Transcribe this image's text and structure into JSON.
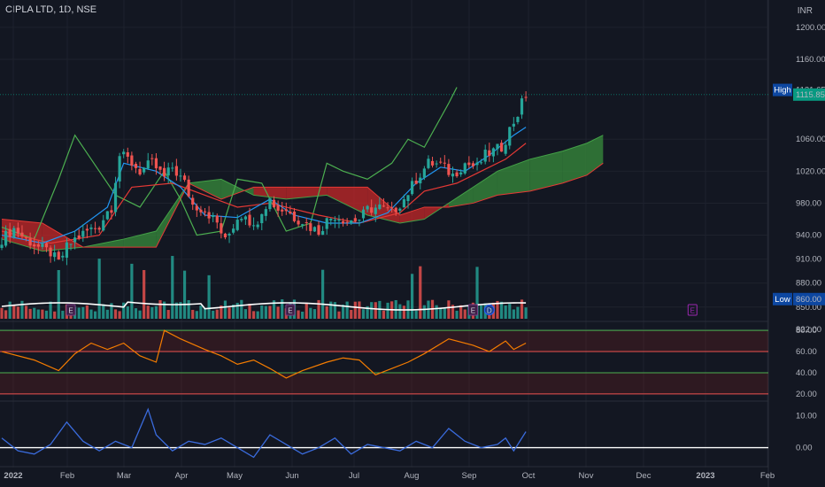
{
  "header": {
    "symbol": "CIPLA LTD, 1D, NSE",
    "currency": "INR"
  },
  "colors": {
    "background": "#131722",
    "up": "#26a69a",
    "down": "#ef5350",
    "tenkan": "#2196f3",
    "kijun": "#e53935",
    "lagging": "#4caf50",
    "cloud_bull": "#388e3c",
    "cloud_bear": "#c62828",
    "volume_ma": "#ffffff",
    "rsi": "#f57c00",
    "momentum": "#3a6bdc",
    "earnings": "#9c27b0",
    "high_tag": "#0d47a1",
    "last_tag": "#089981"
  },
  "chart_data": [
    {
      "type": "candlestick",
      "title": "CIPLA LTD, 1D, NSE",
      "ylim": [
        852,
        1212
      ],
      "price_ticks": [
        "1200.00",
        "1160.00",
        "1060.00",
        "1020.00",
        "980.00",
        "940.00",
        "910.00",
        "880.00",
        "850.00",
        "822.00"
      ],
      "price_tick_values": [
        1200,
        1160,
        1060,
        1020,
        980,
        940,
        910,
        880,
        850,
        822
      ],
      "x_ticks": [
        "2022",
        "Feb",
        "Mar",
        "Apr",
        "May",
        "Jun",
        "Jul",
        "Aug",
        "Sep",
        "Oct",
        "Nov",
        "Dec",
        "2023",
        "Feb"
      ],
      "close_path": [
        [
          0,
          935
        ],
        [
          3,
          948
        ],
        [
          6,
          935
        ],
        [
          9,
          925
        ],
        [
          12,
          918
        ],
        [
          14,
          905
        ],
        [
          16,
          925
        ],
        [
          18,
          935
        ],
        [
          21,
          945
        ],
        [
          24,
          952
        ],
        [
          26,
          970
        ],
        [
          27,
          975
        ],
        [
          28,
          1010
        ],
        [
          29,
          1040
        ],
        [
          31,
          1035
        ],
        [
          34,
          1020
        ],
        [
          37,
          1030
        ],
        [
          40,
          1012
        ],
        [
          42,
          1025
        ],
        [
          45,
          1005
        ],
        [
          47,
          978
        ],
        [
          50,
          972
        ],
        [
          53,
          955
        ],
        [
          55,
          932
        ],
        [
          58,
          962
        ],
        [
          60,
          968
        ],
        [
          62,
          948
        ],
        [
          64,
          972
        ],
        [
          66,
          985
        ],
        [
          68,
          972
        ],
        [
          70,
          972
        ],
        [
          72,
          962
        ],
        [
          74,
          958
        ],
        [
          76,
          950
        ],
        [
          78,
          945
        ],
        [
          80,
          958
        ],
        [
          82,
          965
        ],
        [
          85,
          958
        ],
        [
          88,
          960
        ],
        [
          90,
          972
        ],
        [
          93,
          975
        ],
        [
          96,
          968
        ],
        [
          99,
          985
        ],
        [
          102,
          1010
        ],
        [
          105,
          1030
        ],
        [
          108,
          1028
        ],
        [
          111,
          1015
        ],
        [
          114,
          1030
        ],
        [
          117,
          1025
        ],
        [
          119,
          1040
        ],
        [
          121,
          1045
        ],
        [
          123,
          1050
        ],
        [
          124,
          1060
        ],
        [
          125,
          1072
        ],
        [
          126,
          1082
        ],
        [
          127,
          1092
        ],
        [
          128,
          1105
        ],
        [
          129,
          1115.85
        ]
      ],
      "last_x": 129,
      "high": {
        "label": "High",
        "value": 1121.65,
        "value_text": "1121.65"
      },
      "last": {
        "value": 1115.85,
        "value_text": "1115.85"
      },
      "low": {
        "label": "Low",
        "value": 860,
        "value_text": "860.00"
      },
      "ichimoku": {
        "tenkan_path": [
          [
            0,
            940
          ],
          [
            10,
            930
          ],
          [
            18,
            945
          ],
          [
            26,
            975
          ],
          [
            30,
            1030
          ],
          [
            38,
            1020
          ],
          [
            44,
            1000
          ],
          [
            50,
            965
          ],
          [
            58,
            962
          ],
          [
            66,
            985
          ],
          [
            72,
            965
          ],
          [
            80,
            955
          ],
          [
            88,
            955
          ],
          [
            95,
            968
          ],
          [
            102,
            1005
          ],
          [
            108,
            1025
          ],
          [
            114,
            1020
          ],
          [
            120,
            1040
          ],
          [
            126,
            1065
          ],
          [
            129,
            1075
          ]
        ],
        "kijun_path": [
          [
            0,
            945
          ],
          [
            12,
            930
          ],
          [
            24,
            940
          ],
          [
            32,
            1000
          ],
          [
            42,
            1005
          ],
          [
            50,
            990
          ],
          [
            58,
            975
          ],
          [
            66,
            980
          ],
          [
            78,
            965
          ],
          [
            88,
            955
          ],
          [
            98,
            968
          ],
          [
            104,
            995
          ],
          [
            112,
            1005
          ],
          [
            118,
            1020
          ],
          [
            124,
            1035
          ],
          [
            129,
            1055
          ]
        ],
        "lagging_path": [
          [
            0,
            950
          ],
          [
            8,
            935
          ],
          [
            14,
            1010
          ],
          [
            18,
            1065
          ],
          [
            22,
            1035
          ],
          [
            28,
            990
          ],
          [
            34,
            975
          ],
          [
            40,
            1020
          ],
          [
            44,
            985
          ],
          [
            48,
            940
          ],
          [
            54,
            945
          ],
          [
            58,
            1010
          ],
          [
            64,
            1005
          ],
          [
            70,
            945
          ],
          [
            76,
            955
          ],
          [
            80,
            1030
          ],
          [
            84,
            1020
          ],
          [
            90,
            1010
          ],
          [
            96,
            1030
          ],
          [
            100,
            1060
          ],
          [
            104,
            1050
          ],
          [
            110,
            1105
          ],
          [
            112,
            1125
          ]
        ],
        "cloud_x": [
          0,
          10,
          20,
          30,
          38,
          46,
          54,
          62,
          70,
          80,
          90,
          98,
          104,
          110,
          116,
          122,
          130,
          138,
          144,
          148
        ],
        "span_a": [
          935,
          920,
          925,
          935,
          945,
          1005,
          1010,
          990,
          985,
          990,
          965,
          955,
          960,
          980,
          1000,
          1020,
          1035,
          1045,
          1055,
          1065
        ],
        "span_b": [
          960,
          955,
          925,
          925,
          925,
          1005,
          985,
          1000,
          1000,
          1000,
          1000,
          965,
          975,
          975,
          980,
          990,
          995,
          1005,
          1015,
          1030
        ]
      }
    },
    {
      "type": "bar",
      "name": "Volume",
      "bars": 130,
      "markers": [
        {
          "label": "E",
          "x": 17,
          "kind": "past"
        },
        {
          "label": "E",
          "x": 71,
          "kind": "past"
        },
        {
          "label": "E",
          "x": 116,
          "kind": "past"
        },
        {
          "label": "D",
          "x": 120,
          "kind": "dividend"
        },
        {
          "label": "E",
          "x": 170,
          "kind": "future"
        }
      ]
    },
    {
      "type": "line",
      "name": "RSI",
      "ylim": [
        14,
        86
      ],
      "ticks": [
        "80.00",
        "60.00",
        "40.00",
        "20.00"
      ],
      "tick_values": [
        80,
        60,
        40,
        20
      ],
      "bands": [
        80,
        60,
        40,
        20
      ],
      "path": [
        [
          0,
          60
        ],
        [
          8,
          52
        ],
        [
          14,
          42
        ],
        [
          18,
          58
        ],
        [
          22,
          68
        ],
        [
          26,
          62
        ],
        [
          30,
          68
        ],
        [
          34,
          56
        ],
        [
          38,
          50
        ],
        [
          40,
          80
        ],
        [
          44,
          72
        ],
        [
          50,
          62
        ],
        [
          54,
          56
        ],
        [
          58,
          48
        ],
        [
          62,
          52
        ],
        [
          66,
          44
        ],
        [
          70,
          35
        ],
        [
          74,
          42
        ],
        [
          80,
          50
        ],
        [
          84,
          54
        ],
        [
          88,
          52
        ],
        [
          92,
          38
        ],
        [
          96,
          44
        ],
        [
          100,
          50
        ],
        [
          104,
          58
        ],
        [
          110,
          72
        ],
        [
          116,
          66
        ],
        [
          120,
          60
        ],
        [
          124,
          70
        ],
        [
          126,
          62
        ],
        [
          129,
          68
        ]
      ]
    },
    {
      "type": "line",
      "name": "Momentum",
      "ylim": [
        -4,
        14
      ],
      "ticks": [
        "10.00",
        "0.00"
      ],
      "tick_values": [
        10,
        0
      ],
      "zero": 0,
      "path": [
        [
          0,
          3
        ],
        [
          4,
          -1
        ],
        [
          8,
          -2
        ],
        [
          12,
          1
        ],
        [
          16,
          8
        ],
        [
          20,
          2
        ],
        [
          24,
          -1
        ],
        [
          28,
          2
        ],
        [
          32,
          0
        ],
        [
          36,
          12
        ],
        [
          38,
          4
        ],
        [
          42,
          -1
        ],
        [
          46,
          2
        ],
        [
          50,
          1
        ],
        [
          54,
          3
        ],
        [
          58,
          0
        ],
        [
          62,
          -3
        ],
        [
          66,
          4
        ],
        [
          70,
          1
        ],
        [
          74,
          -2
        ],
        [
          78,
          0
        ],
        [
          82,
          3
        ],
        [
          86,
          -2
        ],
        [
          90,
          1
        ],
        [
          94,
          0
        ],
        [
          98,
          -1
        ],
        [
          102,
          2
        ],
        [
          106,
          0
        ],
        [
          110,
          6
        ],
        [
          114,
          2
        ],
        [
          118,
          0
        ],
        [
          122,
          1
        ],
        [
          124,
          3
        ],
        [
          126,
          -1
        ],
        [
          128,
          3
        ],
        [
          129,
          5
        ]
      ]
    }
  ]
}
